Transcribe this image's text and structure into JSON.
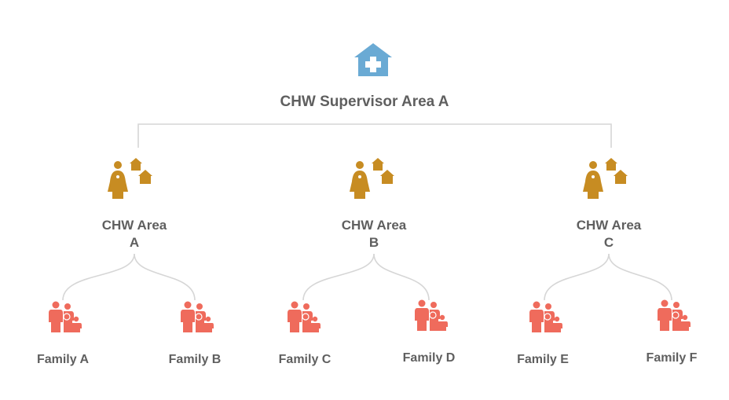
{
  "supervisor": {
    "label": "CHW Supervisor Area A",
    "icon": "health-facility-icon",
    "color": "#6aaad4"
  },
  "areas": [
    {
      "line1": "CHW Area",
      "line2": "A",
      "icon": "community-health-worker-icon",
      "color": "#c78c22"
    },
    {
      "line1": "CHW Area",
      "line2": "B",
      "icon": "community-health-worker-icon",
      "color": "#c78c22"
    },
    {
      "line1": "CHW Area",
      "line2": "C",
      "icon": "community-health-worker-icon",
      "color": "#c78c22"
    }
  ],
  "families": [
    {
      "label": "Family A",
      "icon": "family-icon",
      "color": "#ef6b5c"
    },
    {
      "label": "Family B",
      "icon": "family-icon",
      "color": "#ef6b5c"
    },
    {
      "label": "Family C",
      "icon": "family-icon",
      "color": "#ef6b5c"
    },
    {
      "label": "Family D",
      "icon": "family-icon",
      "color": "#ef6b5c"
    },
    {
      "label": "Family E",
      "icon": "family-icon",
      "color": "#ef6b5c"
    },
    {
      "label": "Family F",
      "icon": "family-icon",
      "color": "#ef6b5c"
    }
  ],
  "connector_color": "#d6d6d6"
}
